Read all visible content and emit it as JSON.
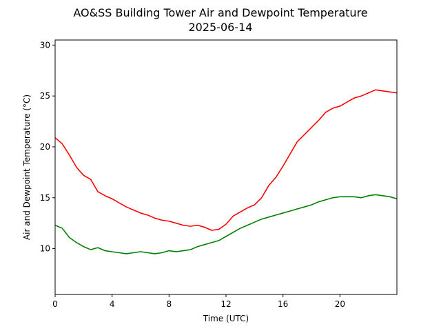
{
  "chart_data": {
    "type": "line",
    "title": "AO&SS Building Tower Air and Dewpoint Temperature",
    "subtitle": "2025-06-14",
    "xlabel": "Time (UTC)",
    "ylabel": "Air and Dewpoint Temperature (°C)",
    "xlim": [
      0,
      24
    ],
    "ylim": [
      5.5,
      30.5
    ],
    "xticks": [
      0,
      4,
      8,
      12,
      16,
      20
    ],
    "yticks": [
      10,
      15,
      20,
      25,
      30
    ],
    "grid": false,
    "x": [
      0,
      0.5,
      1,
      1.5,
      2,
      2.5,
      3,
      3.5,
      4,
      4.5,
      5,
      5.5,
      6,
      6.5,
      7,
      7.5,
      8,
      8.5,
      9,
      9.5,
      10,
      10.5,
      11,
      11.5,
      12,
      12.5,
      13,
      13.5,
      14,
      14.5,
      15,
      15.5,
      16,
      16.5,
      17,
      17.5,
      18,
      18.5,
      19,
      19.5,
      20,
      20.5,
      21,
      21.5,
      22,
      22.5,
      23,
      23.5,
      24
    ],
    "series": [
      {
        "color": "#ff0000",
        "values": [
          20.9,
          20.3,
          19.2,
          18.0,
          17.2,
          16.8,
          15.6,
          15.2,
          14.9,
          14.5,
          14.1,
          13.8,
          13.5,
          13.3,
          13.0,
          12.8,
          12.7,
          12.5,
          12.3,
          12.2,
          12.3,
          12.1,
          11.8,
          11.9,
          12.4,
          13.2,
          13.6,
          14.0,
          14.3,
          15.0,
          16.2,
          17.0,
          18.1,
          19.3,
          20.5,
          21.2,
          21.9,
          22.6,
          23.4,
          23.8,
          24.0,
          24.4,
          24.8,
          25.0,
          25.3,
          25.6,
          25.5,
          25.4,
          25.3
        ]
      },
      {
        "color": "#008000",
        "values": [
          12.3,
          12.0,
          11.1,
          10.6,
          10.2,
          9.9,
          10.1,
          9.8,
          9.7,
          9.6,
          9.5,
          9.6,
          9.7,
          9.6,
          9.5,
          9.6,
          9.8,
          9.7,
          9.8,
          9.9,
          10.2,
          10.4,
          10.6,
          10.8,
          11.2,
          11.6,
          12.0,
          12.3,
          12.6,
          12.9,
          13.1,
          13.3,
          13.5,
          13.7,
          13.9,
          14.1,
          14.3,
          14.6,
          14.8,
          15.0,
          15.1,
          15.1,
          15.1,
          15.0,
          15.2,
          15.3,
          15.2,
          15.1,
          14.9
        ]
      }
    ]
  }
}
